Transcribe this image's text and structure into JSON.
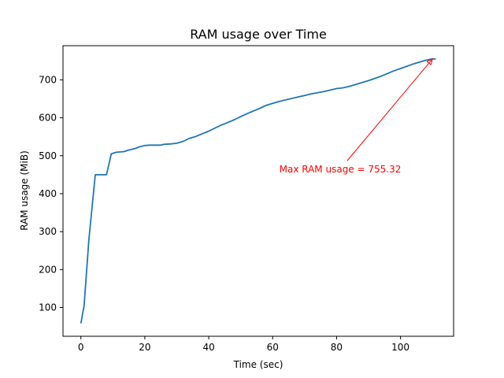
{
  "chart_data": {
    "type": "line",
    "title": "RAM usage over Time",
    "xlabel": "Time (sec)",
    "ylabel": "RAM usage (MiB)",
    "xlim": [
      -5.6,
      116.6
    ],
    "ylim": [
      24.2,
      790.1
    ],
    "xticks": [
      0,
      20,
      40,
      60,
      80,
      100
    ],
    "yticks": [
      100,
      200,
      300,
      400,
      500,
      600,
      700
    ],
    "grid": false,
    "colors": {
      "series": "#1f77b4",
      "annotation": "#ff0000"
    },
    "series": [
      {
        "x": [
          0,
          1,
          2.5,
          4.5,
          6,
          8,
          9.5,
          11,
          13.5,
          15,
          17,
          18.5,
          20,
          21.5,
          25,
          26,
          28,
          30,
          32,
          34,
          36,
          38,
          40,
          42,
          44,
          46,
          48,
          50,
          52,
          54,
          56,
          58,
          60,
          62,
          64,
          66,
          68,
          70,
          72,
          74,
          76,
          78,
          80,
          82,
          84,
          86,
          88,
          90,
          92,
          94,
          96,
          98,
          100,
          102,
          104,
          106,
          108,
          110,
          111
        ],
        "y": [
          58,
          105,
          280,
          450,
          450,
          450,
          505,
          509,
          511,
          515,
          519,
          524,
          527,
          528,
          528,
          530,
          531,
          533,
          538,
          546,
          551,
          558,
          565,
          573,
          581,
          588,
          595,
          603,
          611,
          618,
          625,
          633,
          638,
          643,
          647,
          651,
          655,
          659,
          663,
          666,
          669,
          673,
          677,
          679,
          683,
          688,
          693,
          698,
          704,
          710,
          717,
          724,
          730,
          736,
          742,
          747,
          752,
          755.32,
          755
        ]
      }
    ],
    "annotation": {
      "text": "Max RAM usage = 755.32",
      "x": 110,
      "y": 755.32
    }
  }
}
